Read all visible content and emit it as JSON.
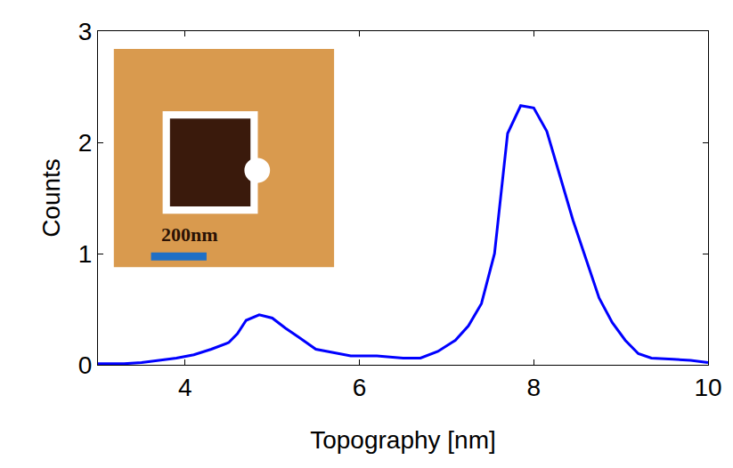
{
  "chart_data": {
    "type": "line",
    "x_label": "Topography [nm]",
    "y_label": "Counts",
    "x": [
      3.0,
      3.3,
      3.5,
      3.7,
      3.9,
      4.1,
      4.3,
      4.5,
      4.6,
      4.7,
      4.85,
      5.0,
      5.15,
      5.3,
      5.5,
      5.7,
      5.9,
      6.2,
      6.5,
      6.7,
      6.9,
      7.1,
      7.25,
      7.4,
      7.55,
      7.7,
      7.85,
      8.0,
      8.15,
      8.3,
      8.45,
      8.6,
      8.75,
      8.9,
      9.05,
      9.2,
      9.35,
      9.6,
      9.8,
      10.0
    ],
    "values": [
      0.01,
      0.01,
      0.02,
      0.04,
      0.06,
      0.09,
      0.14,
      0.2,
      0.28,
      0.4,
      0.45,
      0.42,
      0.33,
      0.25,
      0.14,
      0.11,
      0.08,
      0.08,
      0.06,
      0.06,
      0.12,
      0.22,
      0.35,
      0.55,
      1.0,
      2.08,
      2.33,
      2.31,
      2.1,
      1.7,
      1.3,
      0.95,
      0.6,
      0.38,
      0.22,
      0.1,
      0.06,
      0.05,
      0.04,
      0.02
    ],
    "color": "#0000ff",
    "xlim": [
      3,
      10
    ],
    "xticks": [
      4,
      6,
      8,
      10
    ],
    "ylim": [
      0,
      3
    ],
    "yticks": [
      0,
      1,
      2,
      3
    ],
    "grid": false,
    "annotations": [
      {
        "text": "200nm"
      }
    ]
  }
}
